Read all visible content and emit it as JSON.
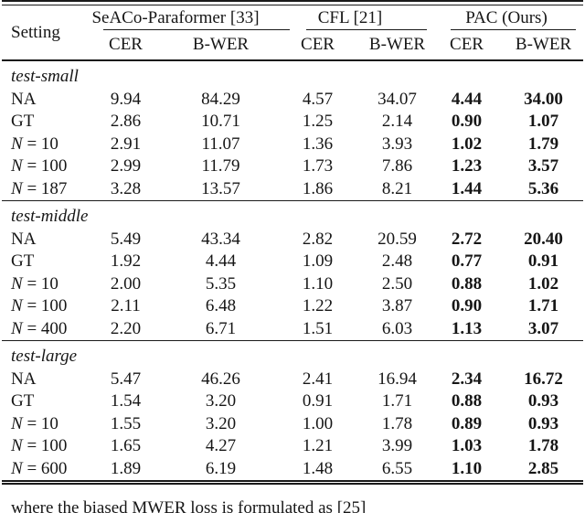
{
  "colors": {
    "ink": "#161616",
    "background": "#ffffff",
    "rule": "#1a1a1a"
  },
  "table": {
    "header": {
      "setting": "Setting",
      "groups": [
        {
          "label": "SeACo-Paraformer [33]",
          "sub": [
            "CER",
            "B-WER"
          ]
        },
        {
          "label": "CFL [21]",
          "sub": [
            "CER",
            "B-WER"
          ]
        },
        {
          "label": "PAC (Ours)",
          "sub": [
            "CER",
            "B-WER"
          ]
        }
      ]
    },
    "bold_columns": [
      4,
      5
    ],
    "sections": [
      {
        "label": "test-small",
        "rows": [
          {
            "setting": "NA",
            "math": false,
            "values": [
              "9.94",
              "84.29",
              "4.57",
              "34.07",
              "4.44",
              "34.00"
            ]
          },
          {
            "setting": "GT",
            "math": false,
            "values": [
              "2.86",
              "10.71",
              "1.25",
              "2.14",
              "0.90",
              "1.07"
            ]
          },
          {
            "setting": "N = 10",
            "math": true,
            "values": [
              "2.91",
              "11.07",
              "1.36",
              "3.93",
              "1.02",
              "1.79"
            ]
          },
          {
            "setting": "N = 100",
            "math": true,
            "values": [
              "2.99",
              "11.79",
              "1.73",
              "7.86",
              "1.23",
              "3.57"
            ]
          },
          {
            "setting": "N = 187",
            "math": true,
            "values": [
              "3.28",
              "13.57",
              "1.86",
              "8.21",
              "1.44",
              "5.36"
            ]
          }
        ]
      },
      {
        "label": "test-middle",
        "rows": [
          {
            "setting": "NA",
            "math": false,
            "values": [
              "5.49",
              "43.34",
              "2.82",
              "20.59",
              "2.72",
              "20.40"
            ]
          },
          {
            "setting": "GT",
            "math": false,
            "values": [
              "1.92",
              "4.44",
              "1.09",
              "2.48",
              "0.77",
              "0.91"
            ]
          },
          {
            "setting": "N = 10",
            "math": true,
            "values": [
              "2.00",
              "5.35",
              "1.10",
              "2.50",
              "0.88",
              "1.02"
            ]
          },
          {
            "setting": "N = 100",
            "math": true,
            "values": [
              "2.11",
              "6.48",
              "1.22",
              "3.87",
              "0.90",
              "1.71"
            ]
          },
          {
            "setting": "N = 400",
            "math": true,
            "values": [
              "2.20",
              "6.71",
              "1.51",
              "6.03",
              "1.13",
              "3.07"
            ]
          }
        ]
      },
      {
        "label": "test-large",
        "rows": [
          {
            "setting": "NA",
            "math": false,
            "values": [
              "5.47",
              "46.26",
              "2.41",
              "16.94",
              "2.34",
              "16.72"
            ]
          },
          {
            "setting": "GT",
            "math": false,
            "values": [
              "1.54",
              "3.20",
              "0.91",
              "1.71",
              "0.88",
              "0.93"
            ]
          },
          {
            "setting": "N = 10",
            "math": true,
            "values": [
              "1.55",
              "3.20",
              "1.00",
              "1.78",
              "0.89",
              "0.93"
            ]
          },
          {
            "setting": "N = 100",
            "math": true,
            "values": [
              "1.65",
              "4.27",
              "1.21",
              "3.99",
              "1.03",
              "1.78"
            ]
          },
          {
            "setting": "N = 600",
            "math": true,
            "values": [
              "1.89",
              "6.19",
              "1.48",
              "6.55",
              "1.10",
              "2.85"
            ]
          }
        ]
      }
    ]
  },
  "caption_fragment": "where the biased MWER loss is formulated as [25]"
}
